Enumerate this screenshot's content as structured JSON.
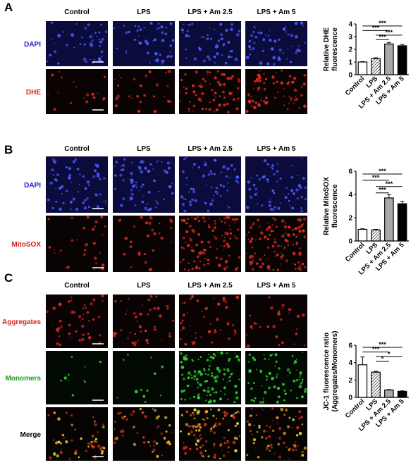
{
  "panels": [
    {
      "letter": "A",
      "columns": [
        "Control",
        "LPS",
        "LPS + Am 2.5",
        "LPS + Am 5"
      ],
      "rows": [
        "DAPI",
        "DHE"
      ],
      "row_colors": [
        "#1f1fd0",
        "#d42020"
      ]
    },
    {
      "letter": "B",
      "columns": [
        "Control",
        "LPS",
        "LPS + Am 2.5",
        "LPS + Am 5"
      ],
      "rows": [
        "DAPI",
        "MitoSOX"
      ],
      "row_colors": [
        "#1f1fd0",
        "#d42020"
      ]
    },
    {
      "letter": "C",
      "columns": [
        "Control",
        "LPS",
        "LPS + Am 2.5",
        "LPS + Am 5"
      ],
      "rows": [
        "Aggregates",
        "Monomers",
        "Merge"
      ],
      "row_colors": [
        "#d42020",
        "#1a9a1a",
        "#000000"
      ]
    }
  ],
  "chart_data": [
    {
      "type": "bar",
      "ylabel": [
        "Relative DHE",
        "fluorescence"
      ],
      "categories": [
        "Control",
        "LPS",
        "LPS + Am 2.5",
        "LPS + Am 5"
      ],
      "values": [
        1.0,
        1.27,
        2.42,
        2.28
      ],
      "errors": [
        0.03,
        0.06,
        0.12,
        0.1
      ],
      "colors": [
        "#ffffff",
        "#ffffff",
        "#a8a8a8",
        "#000000"
      ],
      "hatch": [
        false,
        true,
        false,
        false
      ],
      "ylim": [
        0,
        4
      ],
      "yticks": [
        0,
        1,
        2,
        3,
        4
      ],
      "significance": [
        "***",
        "***",
        "***",
        "***"
      ]
    },
    {
      "type": "bar",
      "ylabel": [
        "Relative MitoSOX",
        "fluorescence"
      ],
      "categories": [
        "Control",
        "LPS",
        "LPS + Am 2.5",
        "LPS + Am 5"
      ],
      "values": [
        1.0,
        0.95,
        3.7,
        3.2
      ],
      "errors": [
        0.05,
        0.05,
        0.3,
        0.2
      ],
      "colors": [
        "#ffffff",
        "#ffffff",
        "#a8a8a8",
        "#000000"
      ],
      "hatch": [
        false,
        true,
        false,
        false
      ],
      "ylim": [
        0,
        6
      ],
      "yticks": [
        0,
        2,
        4,
        6
      ],
      "significance": [
        "***",
        "***",
        "***",
        "***"
      ]
    },
    {
      "type": "bar",
      "ylabel": [
        "JC-1 fluorescence ratio",
        "(Aggregates/Monomers)"
      ],
      "categories": [
        "Control",
        "LPS",
        "LPS + Am 2.5",
        "LPS + Am 5"
      ],
      "values": [
        3.75,
        2.9,
        0.85,
        0.7
      ],
      "errors": [
        0.9,
        0.1,
        0.05,
        0.05
      ],
      "colors": [
        "#ffffff",
        "#ffffff",
        "#a8a8a8",
        "#000000"
      ],
      "hatch": [
        false,
        true,
        false,
        false
      ],
      "ylim": [
        0,
        6
      ],
      "yticks": [
        0,
        2,
        4,
        6
      ],
      "significance": [
        "***",
        "***",
        "*",
        "*"
      ]
    }
  ]
}
